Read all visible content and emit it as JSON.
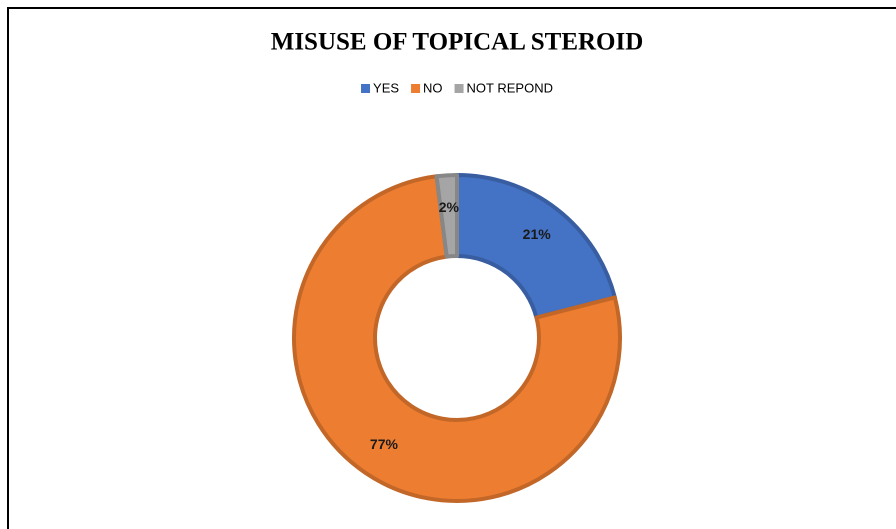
{
  "chart_data": {
    "type": "donut",
    "title": "MISUSE OF TOPICAL STEROID",
    "categories": [
      "YES",
      "NO",
      "NOT REPOND"
    ],
    "values": [
      21,
      77,
      2
    ],
    "value_labels": [
      "21%",
      "77%",
      "2%"
    ],
    "colors": [
      "#4472c4",
      "#ed7d31",
      "#a5a5a5"
    ],
    "legend": "top"
  }
}
